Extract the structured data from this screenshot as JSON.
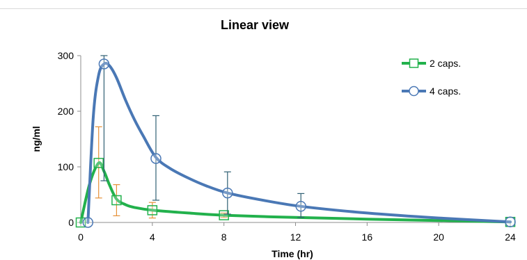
{
  "chart_data": {
    "type": "line",
    "title": "Linear view",
    "xlabel": "Time (hr)",
    "ylabel": "ng/ml",
    "xlim": [
      0,
      24
    ],
    "ylim": [
      0,
      300
    ],
    "x_ticks": [
      "0",
      "4",
      "8",
      "12",
      "16",
      "20",
      "24"
    ],
    "y_ticks": [
      "0",
      "100",
      "200",
      "300"
    ],
    "grid": false,
    "legend_position": "top-right",
    "series": [
      {
        "name": "2 caps.",
        "color": "#22b14c",
        "errorbar_color": "#e69138",
        "marker": "square",
        "points": [
          {
            "x": 0,
            "y": 0
          },
          {
            "x": 1,
            "y": 107,
            "err_low": 63,
            "err_high": 65
          },
          {
            "x": 2,
            "y": 40,
            "err_low": 28,
            "err_high": 28
          },
          {
            "x": 4,
            "y": 22,
            "err_low": 14,
            "err_high": 14
          },
          {
            "x": 8,
            "y": 13,
            "err_low": 4,
            "err_high": 4
          },
          {
            "x": 24,
            "y": 1
          }
        ],
        "curve": [
          [
            0,
            0
          ],
          [
            0.5,
            70
          ],
          [
            1,
            107
          ],
          [
            1.3,
            92
          ],
          [
            1.6,
            68
          ],
          [
            2,
            42
          ],
          [
            2.5,
            32
          ],
          [
            3,
            27
          ],
          [
            4,
            22
          ],
          [
            6,
            17
          ],
          [
            8,
            13
          ],
          [
            12,
            9
          ],
          [
            16,
            6
          ],
          [
            20,
            3.5
          ],
          [
            24,
            1
          ]
        ]
      },
      {
        "name": "4 caps.",
        "color": "#4a78b5",
        "errorbar_color": "#2f5f73",
        "marker": "circle",
        "points": [
          {
            "x": 0.4,
            "y": 0
          },
          {
            "x": 1.3,
            "y": 285,
            "err_low": 210,
            "err_high": 15
          },
          {
            "x": 4.2,
            "y": 115,
            "err_low": 75,
            "err_high": 77
          },
          {
            "x": 8.2,
            "y": 53,
            "err_low": 38,
            "err_high": 38
          },
          {
            "x": 12.3,
            "y": 29,
            "err_low": 20,
            "err_high": 23
          },
          {
            "x": 24,
            "y": 1
          }
        ],
        "curve": [
          [
            0.4,
            0
          ],
          [
            0.7,
            190
          ],
          [
            1,
            265
          ],
          [
            1.3,
            285
          ],
          [
            1.6,
            282
          ],
          [
            2,
            260
          ],
          [
            2.5,
            220
          ],
          [
            3,
            185
          ],
          [
            3.5,
            155
          ],
          [
            4.2,
            117
          ],
          [
            5,
            97
          ],
          [
            6,
            80
          ],
          [
            7,
            66
          ],
          [
            8.2,
            53
          ],
          [
            10,
            41
          ],
          [
            12.3,
            29
          ],
          [
            16,
            17
          ],
          [
            20,
            8
          ],
          [
            24,
            1
          ]
        ]
      }
    ]
  }
}
